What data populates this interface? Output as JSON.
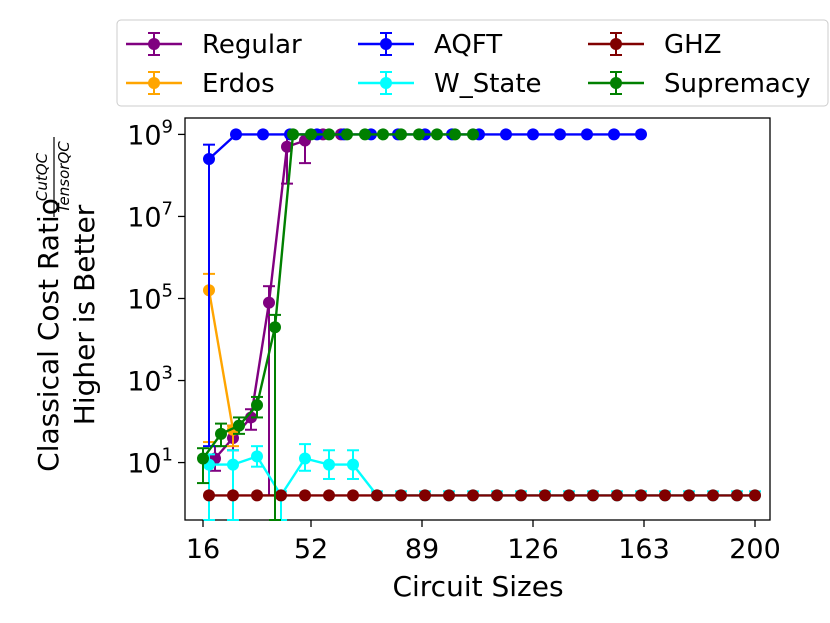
{
  "chart_data": {
    "type": "line",
    "xlabel": "Circuit Sizes",
    "ylabel_line1": "Classical Cost Ratio",
    "ylabel_frac_num": "CutQC",
    "ylabel_frac_den": "TensorQC",
    "ylabel_line2": "Higher is Better",
    "x_ticks": [
      16,
      52,
      89,
      126,
      163,
      200
    ],
    "x_tick_labels": [
      "16",
      "52",
      "89",
      "126",
      "163",
      "200"
    ],
    "xlim": [
      10,
      205
    ],
    "y_scale": "log",
    "ylim_log10": [
      -0.4,
      9.4
    ],
    "y_ticks": [
      {
        "base": "10",
        "exp": "1",
        "log": 1
      },
      {
        "base": "10",
        "exp": "3",
        "log": 3
      },
      {
        "base": "10",
        "exp": "5",
        "log": 5
      },
      {
        "base": "10",
        "exp": "7",
        "log": 7
      },
      {
        "base": "10",
        "exp": "9",
        "log": 9
      }
    ],
    "legend_position": "top, outside, 3 columns",
    "series": [
      {
        "name": "Regular",
        "color": "#800080",
        "x": [
          20,
          26,
          32,
          38,
          44,
          50,
          56,
          62
        ],
        "log10_y": [
          1.1,
          1.6,
          2.1,
          4.9,
          8.7,
          8.85,
          9.0,
          9.0
        ],
        "log10_lo": [
          0.8,
          1.3,
          1.8,
          0.2,
          7.8,
          8.3,
          9.0,
          9.0
        ],
        "log10_hi": [
          1.4,
          1.9,
          2.3,
          5.3,
          9.0,
          9.0,
          9.0,
          9.0
        ]
      },
      {
        "name": "Erdos",
        "color": "#ffa500",
        "x": [
          18,
          26
        ],
        "log10_y": [
          5.2,
          1.8
        ],
        "log10_lo": [
          1.5,
          1.4
        ],
        "log10_hi": [
          5.6,
          1.9
        ]
      },
      {
        "name": "AQFT",
        "color": "#0000ff",
        "x": [
          18,
          27,
          36,
          45,
          54,
          63,
          72,
          81,
          90,
          99,
          108,
          117,
          126,
          135,
          144,
          153,
          162
        ],
        "log10_y": [
          8.4,
          9.0,
          9.0,
          9.0,
          9.0,
          9.0,
          9.0,
          9.0,
          9.0,
          9.0,
          9.0,
          9.0,
          9.0,
          9.0,
          9.0,
          9.0,
          9.0
        ],
        "log10_lo": [
          1.4,
          9.0,
          9.0,
          9.0,
          9.0,
          9.0,
          9.0,
          9.0,
          9.0,
          9.0,
          9.0,
          9.0,
          9.0,
          9.0,
          9.0,
          9.0,
          9.0
        ],
        "log10_hi": [
          8.75,
          9.0,
          9.0,
          9.0,
          9.0,
          9.0,
          9.0,
          9.0,
          9.0,
          9.0,
          9.0,
          9.0,
          9.0,
          9.0,
          9.0,
          9.0,
          9.0
        ]
      },
      {
        "name": "W_State",
        "color": "#00ffff",
        "x": [
          18,
          26,
          34,
          42,
          50,
          58,
          66,
          74,
          82,
          90,
          98,
          106,
          114,
          122,
          130,
          138,
          146,
          154,
          162,
          170,
          178,
          186,
          194,
          200
        ],
        "log10_y": [
          0.95,
          0.95,
          1.15,
          0.2,
          1.1,
          0.95,
          0.95,
          0.2,
          0.2,
          0.2,
          0.2,
          0.2,
          0.2,
          0.2,
          0.2,
          0.2,
          0.2,
          0.2,
          0.2,
          0.2,
          0.2,
          0.2,
          0.2,
          0.2
        ],
        "log10_lo": [
          -0.5,
          -0.5,
          0.9,
          -0.5,
          0.8,
          0.6,
          0.6,
          0.2,
          0.2,
          0.2,
          0.2,
          0.2,
          0.2,
          0.2,
          0.2,
          0.2,
          0.2,
          0.2,
          0.2,
          0.2,
          0.2,
          0.2,
          0.2,
          0.2
        ],
        "log10_hi": [
          1.2,
          1.3,
          1.4,
          0.3,
          1.45,
          1.3,
          1.3,
          0.3,
          0.3,
          0.3,
          0.3,
          0.3,
          0.3,
          0.3,
          0.3,
          0.3,
          0.3,
          0.3,
          0.3,
          0.3,
          0.3,
          0.3,
          0.3,
          0.3
        ]
      },
      {
        "name": "GHZ",
        "color": "#800000",
        "x": [
          18,
          26,
          34,
          42,
          50,
          58,
          66,
          74,
          82,
          90,
          98,
          106,
          114,
          122,
          130,
          138,
          146,
          154,
          162,
          170,
          178,
          186,
          194,
          200
        ],
        "log10_y": [
          0.2,
          0.2,
          0.2,
          0.2,
          0.2,
          0.2,
          0.2,
          0.2,
          0.2,
          0.2,
          0.2,
          0.2,
          0.2,
          0.2,
          0.2,
          0.2,
          0.2,
          0.2,
          0.2,
          0.2,
          0.2,
          0.2,
          0.2,
          0.2
        ],
        "log10_lo": [
          0.2,
          0.2,
          0.2,
          0.2,
          0.2,
          0.2,
          0.2,
          0.2,
          0.2,
          0.2,
          0.2,
          0.2,
          0.2,
          0.2,
          0.2,
          0.2,
          0.2,
          0.2,
          0.2,
          0.2,
          0.2,
          0.2,
          0.2,
          0.2
        ],
        "log10_hi": [
          0.2,
          0.2,
          0.2,
          0.2,
          0.2,
          0.2,
          0.2,
          0.2,
          0.2,
          0.2,
          0.2,
          0.2,
          0.2,
          0.2,
          0.2,
          0.2,
          0.2,
          0.2,
          0.2,
          0.2,
          0.2,
          0.2,
          0.2,
          0.2
        ]
      },
      {
        "name": "Supremacy",
        "color": "#008000",
        "x": [
          16,
          22,
          28,
          34,
          40,
          46,
          52,
          58,
          64,
          70,
          76,
          82,
          88,
          94,
          100,
          106
        ],
        "log10_y": [
          1.1,
          1.7,
          1.9,
          2.4,
          4.3,
          9.0,
          9.0,
          9.0,
          9.0,
          9.0,
          9.0,
          9.0,
          9.0,
          9.0,
          9.0,
          9.0
        ],
        "log10_lo": [
          0.5,
          1.4,
          1.7,
          2.1,
          -0.5,
          9.0,
          9.0,
          9.0,
          9.0,
          9.0,
          9.0,
          9.0,
          9.0,
          9.0,
          9.0,
          9.0
        ],
        "log10_hi": [
          1.35,
          1.95,
          2.1,
          2.6,
          4.6,
          9.0,
          9.0,
          9.0,
          9.0,
          9.0,
          9.0,
          9.0,
          9.0,
          9.0,
          9.0,
          9.0
        ]
      }
    ]
  }
}
